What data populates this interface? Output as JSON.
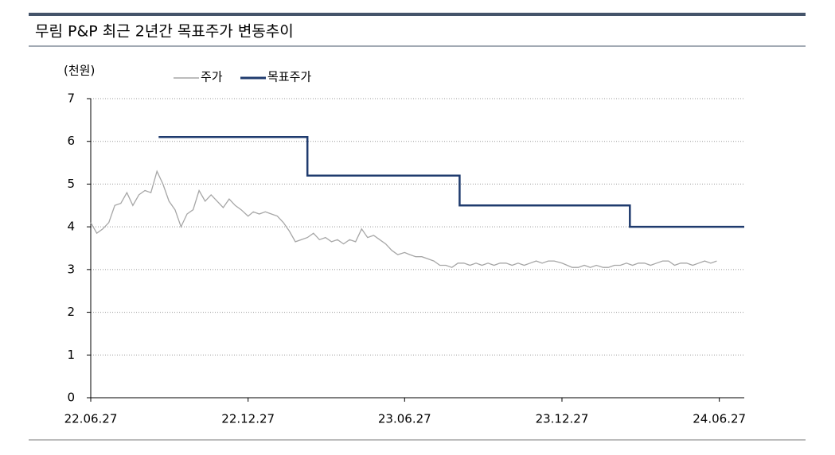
{
  "chart_data": {
    "type": "line",
    "title": "무림 P&P 최근 2년간 목표주가 변동추이",
    "y_label": "(천원)",
    "ylim": [
      0,
      7
    ],
    "yticks": [
      0,
      1,
      2,
      3,
      4,
      5,
      6,
      7
    ],
    "grid": true,
    "xlim": [
      "22.06.27",
      "24.07.26"
    ],
    "xticks": [
      "22.06.27",
      "22.12.27",
      "23.06.27",
      "23.12.27",
      "24.06.27"
    ],
    "series": [
      {
        "name": "주가",
        "color": "#a6a6a6",
        "x": [
          "22.06.27",
          "22.07.04",
          "22.07.11",
          "22.07.18",
          "22.07.25",
          "22.08.01",
          "22.08.08",
          "22.08.15",
          "22.08.22",
          "22.08.29",
          "22.09.05",
          "22.09.12",
          "22.09.19",
          "22.09.26",
          "22.10.03",
          "22.10.10",
          "22.10.17",
          "22.10.24",
          "22.10.31",
          "22.11.07",
          "22.11.14",
          "22.11.21",
          "22.11.28",
          "22.12.05",
          "22.12.12",
          "22.12.19",
          "22.12.27",
          "23.01.02",
          "23.01.09",
          "23.01.16",
          "23.01.23",
          "23.01.30",
          "23.02.06",
          "23.02.13",
          "23.02.20",
          "23.02.27",
          "23.03.06",
          "23.03.13",
          "23.03.20",
          "23.03.27",
          "23.04.03",
          "23.04.10",
          "23.04.17",
          "23.04.24",
          "23.05.01",
          "23.05.08",
          "23.05.15",
          "23.05.22",
          "23.05.29",
          "23.06.05",
          "23.06.12",
          "23.06.19",
          "23.06.27",
          "23.07.03",
          "23.07.10",
          "23.07.17",
          "23.07.24",
          "23.07.31",
          "23.08.07",
          "23.08.14",
          "23.08.21",
          "23.08.28",
          "23.09.04",
          "23.09.11",
          "23.09.18",
          "23.09.25",
          "23.10.02",
          "23.10.09",
          "23.10.16",
          "23.10.23",
          "23.10.30",
          "23.11.06",
          "23.11.13",
          "23.11.20",
          "23.11.27",
          "23.12.04",
          "23.12.11",
          "23.12.18",
          "23.12.27",
          "24.01.02",
          "24.01.08",
          "24.01.15",
          "24.01.22",
          "24.01.29",
          "24.02.05",
          "24.02.13",
          "24.02.19",
          "24.02.26",
          "24.03.04",
          "24.03.11",
          "24.03.18",
          "24.03.25",
          "24.04.01",
          "24.04.08",
          "24.04.15",
          "24.04.22",
          "24.04.29",
          "24.05.06",
          "24.05.13",
          "24.05.20",
          "24.05.27",
          "24.06.03",
          "24.06.10",
          "24.06.17",
          "24.06.24"
        ],
        "values": [
          4.1,
          3.85,
          3.95,
          4.1,
          4.5,
          4.55,
          4.8,
          4.5,
          4.75,
          4.85,
          4.8,
          5.3,
          5.0,
          4.6,
          4.4,
          4.0,
          4.3,
          4.4,
          4.85,
          4.6,
          4.75,
          4.6,
          4.45,
          4.65,
          4.5,
          4.4,
          4.25,
          4.35,
          4.3,
          4.35,
          4.3,
          4.25,
          4.1,
          3.9,
          3.65,
          3.7,
          3.75,
          3.85,
          3.7,
          3.75,
          3.65,
          3.7,
          3.6,
          3.7,
          3.65,
          3.95,
          3.75,
          3.8,
          3.7,
          3.6,
          3.45,
          3.35,
          3.4,
          3.35,
          3.3,
          3.3,
          3.25,
          3.2,
          3.1,
          3.1,
          3.05,
          3.15,
          3.15,
          3.1,
          3.15,
          3.1,
          3.15,
          3.1,
          3.15,
          3.15,
          3.1,
          3.15,
          3.1,
          3.15,
          3.2,
          3.15,
          3.2,
          3.2,
          3.15,
          3.1,
          3.05,
          3.05,
          3.1,
          3.05,
          3.1,
          3.05,
          3.05,
          3.1,
          3.1,
          3.15,
          3.1,
          3.15,
          3.15,
          3.1,
          3.15,
          3.2,
          3.2,
          3.1,
          3.15,
          3.15,
          3.1,
          3.15,
          3.2,
          3.15,
          3.2
        ]
      },
      {
        "name": "목표주가",
        "color": "#1f3b6e",
        "x": [
          "22.09.14",
          "23.03.06",
          "23.03.06",
          "23.08.30",
          "23.08.30",
          "24.03.15",
          "24.03.15",
          "24.07.26"
        ],
        "values": [
          6.1,
          6.1,
          5.2,
          5.2,
          4.5,
          4.5,
          4.0,
          4.0
        ]
      }
    ]
  }
}
